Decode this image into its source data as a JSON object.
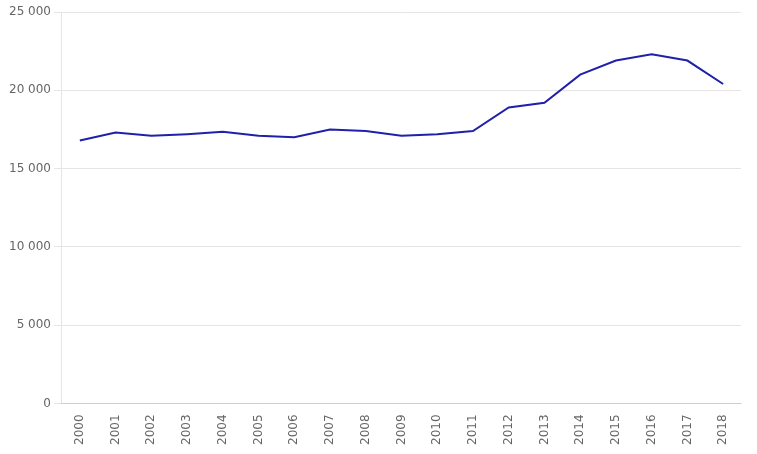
{
  "chart_data": {
    "type": "line",
    "x": [
      2000,
      2001,
      2002,
      2003,
      2004,
      2005,
      2006,
      2007,
      2008,
      2009,
      2010,
      2011,
      2012,
      2013,
      2014,
      2015,
      2016,
      2017,
      2018
    ],
    "values": [
      16800,
      17300,
      17100,
      17200,
      17350,
      17100,
      17000,
      17500,
      17400,
      17100,
      17200,
      17400,
      18900,
      19200,
      21000,
      21900,
      22300,
      21900,
      20400
    ],
    "color": "#2020aa",
    "xlim": [
      1999.5,
      2018.5
    ],
    "xticks": [
      2000,
      2001,
      2002,
      2003,
      2004,
      2005,
      2006,
      2007,
      2008,
      2009,
      2010,
      2011,
      2012,
      2013,
      2014,
      2015,
      2016,
      2017,
      2018
    ],
    "ylim": [
      0,
      25000
    ],
    "yticks": [
      0,
      {
        "value": 5000,
        "label": "5 000"
      },
      {
        "value": 10000,
        "label": "10 000"
      },
      {
        "value": 15000,
        "label": "15 000"
      },
      {
        "value": 20000,
        "label": "20 000"
      },
      {
        "value": 25000,
        "label": "25 000"
      }
    ],
    "grid": "y"
  }
}
